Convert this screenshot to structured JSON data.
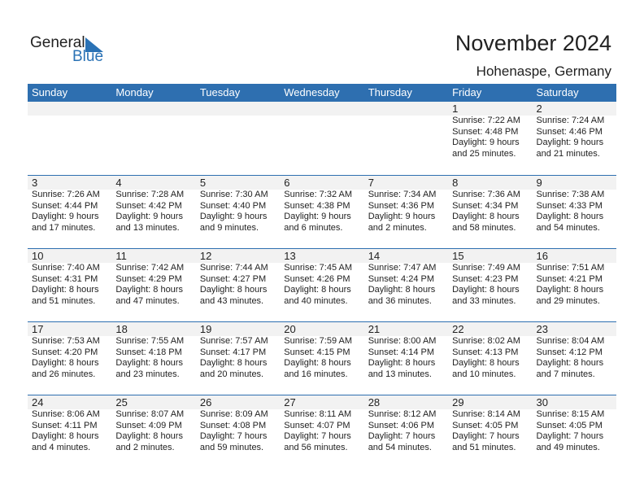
{
  "logo": {
    "text1": "General",
    "text2": "Blue"
  },
  "title": "November 2024",
  "location": "Hohenaspe, Germany",
  "colors": {
    "header": "#2e6fb0",
    "band": "#f2f2f2"
  },
  "days": [
    "Sunday",
    "Monday",
    "Tuesday",
    "Wednesday",
    "Thursday",
    "Friday",
    "Saturday"
  ],
  "weeks": [
    [
      null,
      null,
      null,
      null,
      null,
      {
        "day": "1",
        "sunrise": "Sunrise: 7:22 AM",
        "sunset": "Sunset: 4:48 PM",
        "daylight": "Daylight: 9 hours",
        "minutes": "and 25 minutes."
      },
      {
        "day": "2",
        "sunrise": "Sunrise: 7:24 AM",
        "sunset": "Sunset: 4:46 PM",
        "daylight": "Daylight: 9 hours",
        "minutes": "and 21 minutes."
      }
    ],
    [
      {
        "day": "3",
        "sunrise": "Sunrise: 7:26 AM",
        "sunset": "Sunset: 4:44 PM",
        "daylight": "Daylight: 9 hours",
        "minutes": "and 17 minutes."
      },
      {
        "day": "4",
        "sunrise": "Sunrise: 7:28 AM",
        "sunset": "Sunset: 4:42 PM",
        "daylight": "Daylight: 9 hours",
        "minutes": "and 13 minutes."
      },
      {
        "day": "5",
        "sunrise": "Sunrise: 7:30 AM",
        "sunset": "Sunset: 4:40 PM",
        "daylight": "Daylight: 9 hours",
        "minutes": "and 9 minutes."
      },
      {
        "day": "6",
        "sunrise": "Sunrise: 7:32 AM",
        "sunset": "Sunset: 4:38 PM",
        "daylight": "Daylight: 9 hours",
        "minutes": "and 6 minutes."
      },
      {
        "day": "7",
        "sunrise": "Sunrise: 7:34 AM",
        "sunset": "Sunset: 4:36 PM",
        "daylight": "Daylight: 9 hours",
        "minutes": "and 2 minutes."
      },
      {
        "day": "8",
        "sunrise": "Sunrise: 7:36 AM",
        "sunset": "Sunset: 4:34 PM",
        "daylight": "Daylight: 8 hours",
        "minutes": "and 58 minutes."
      },
      {
        "day": "9",
        "sunrise": "Sunrise: 7:38 AM",
        "sunset": "Sunset: 4:33 PM",
        "daylight": "Daylight: 8 hours",
        "minutes": "and 54 minutes."
      }
    ],
    [
      {
        "day": "10",
        "sunrise": "Sunrise: 7:40 AM",
        "sunset": "Sunset: 4:31 PM",
        "daylight": "Daylight: 8 hours",
        "minutes": "and 51 minutes."
      },
      {
        "day": "11",
        "sunrise": "Sunrise: 7:42 AM",
        "sunset": "Sunset: 4:29 PM",
        "daylight": "Daylight: 8 hours",
        "minutes": "and 47 minutes."
      },
      {
        "day": "12",
        "sunrise": "Sunrise: 7:44 AM",
        "sunset": "Sunset: 4:27 PM",
        "daylight": "Daylight: 8 hours",
        "minutes": "and 43 minutes."
      },
      {
        "day": "13",
        "sunrise": "Sunrise: 7:45 AM",
        "sunset": "Sunset: 4:26 PM",
        "daylight": "Daylight: 8 hours",
        "minutes": "and 40 minutes."
      },
      {
        "day": "14",
        "sunrise": "Sunrise: 7:47 AM",
        "sunset": "Sunset: 4:24 PM",
        "daylight": "Daylight: 8 hours",
        "minutes": "and 36 minutes."
      },
      {
        "day": "15",
        "sunrise": "Sunrise: 7:49 AM",
        "sunset": "Sunset: 4:23 PM",
        "daylight": "Daylight: 8 hours",
        "minutes": "and 33 minutes."
      },
      {
        "day": "16",
        "sunrise": "Sunrise: 7:51 AM",
        "sunset": "Sunset: 4:21 PM",
        "daylight": "Daylight: 8 hours",
        "minutes": "and 29 minutes."
      }
    ],
    [
      {
        "day": "17",
        "sunrise": "Sunrise: 7:53 AM",
        "sunset": "Sunset: 4:20 PM",
        "daylight": "Daylight: 8 hours",
        "minutes": "and 26 minutes."
      },
      {
        "day": "18",
        "sunrise": "Sunrise: 7:55 AM",
        "sunset": "Sunset: 4:18 PM",
        "daylight": "Daylight: 8 hours",
        "minutes": "and 23 minutes."
      },
      {
        "day": "19",
        "sunrise": "Sunrise: 7:57 AM",
        "sunset": "Sunset: 4:17 PM",
        "daylight": "Daylight: 8 hours",
        "minutes": "and 20 minutes."
      },
      {
        "day": "20",
        "sunrise": "Sunrise: 7:59 AM",
        "sunset": "Sunset: 4:15 PM",
        "daylight": "Daylight: 8 hours",
        "minutes": "and 16 minutes."
      },
      {
        "day": "21",
        "sunrise": "Sunrise: 8:00 AM",
        "sunset": "Sunset: 4:14 PM",
        "daylight": "Daylight: 8 hours",
        "minutes": "and 13 minutes."
      },
      {
        "day": "22",
        "sunrise": "Sunrise: 8:02 AM",
        "sunset": "Sunset: 4:13 PM",
        "daylight": "Daylight: 8 hours",
        "minutes": "and 10 minutes."
      },
      {
        "day": "23",
        "sunrise": "Sunrise: 8:04 AM",
        "sunset": "Sunset: 4:12 PM",
        "daylight": "Daylight: 8 hours",
        "minutes": "and 7 minutes."
      }
    ],
    [
      {
        "day": "24",
        "sunrise": "Sunrise: 8:06 AM",
        "sunset": "Sunset: 4:11 PM",
        "daylight": "Daylight: 8 hours",
        "minutes": "and 4 minutes."
      },
      {
        "day": "25",
        "sunrise": "Sunrise: 8:07 AM",
        "sunset": "Sunset: 4:09 PM",
        "daylight": "Daylight: 8 hours",
        "minutes": "and 2 minutes."
      },
      {
        "day": "26",
        "sunrise": "Sunrise: 8:09 AM",
        "sunset": "Sunset: 4:08 PM",
        "daylight": "Daylight: 7 hours",
        "minutes": "and 59 minutes."
      },
      {
        "day": "27",
        "sunrise": "Sunrise: 8:11 AM",
        "sunset": "Sunset: 4:07 PM",
        "daylight": "Daylight: 7 hours",
        "minutes": "and 56 minutes."
      },
      {
        "day": "28",
        "sunrise": "Sunrise: 8:12 AM",
        "sunset": "Sunset: 4:06 PM",
        "daylight": "Daylight: 7 hours",
        "minutes": "and 54 minutes."
      },
      {
        "day": "29",
        "sunrise": "Sunrise: 8:14 AM",
        "sunset": "Sunset: 4:05 PM",
        "daylight": "Daylight: 7 hours",
        "minutes": "and 51 minutes."
      },
      {
        "day": "30",
        "sunrise": "Sunrise: 8:15 AM",
        "sunset": "Sunset: 4:05 PM",
        "daylight": "Daylight: 7 hours",
        "minutes": "and 49 minutes."
      }
    ]
  ]
}
